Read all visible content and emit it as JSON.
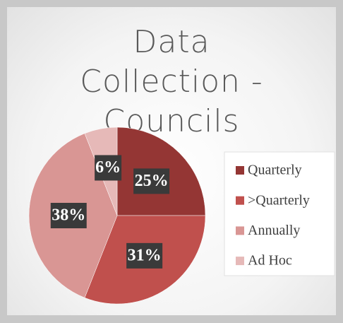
{
  "chart_data": {
    "type": "pie",
    "title": "Data Collection - Councils",
    "categories": [
      "Quarterly",
      ">Quarterly",
      "Annually",
      "Ad Hoc"
    ],
    "values": [
      25,
      31,
      38,
      6
    ],
    "value_labels": [
      "25%",
      "31%",
      "38%",
      "6%"
    ],
    "colors": [
      "#943634",
      "#c0504d",
      "#d99694",
      "#e6b9b8"
    ],
    "legend": "right"
  }
}
